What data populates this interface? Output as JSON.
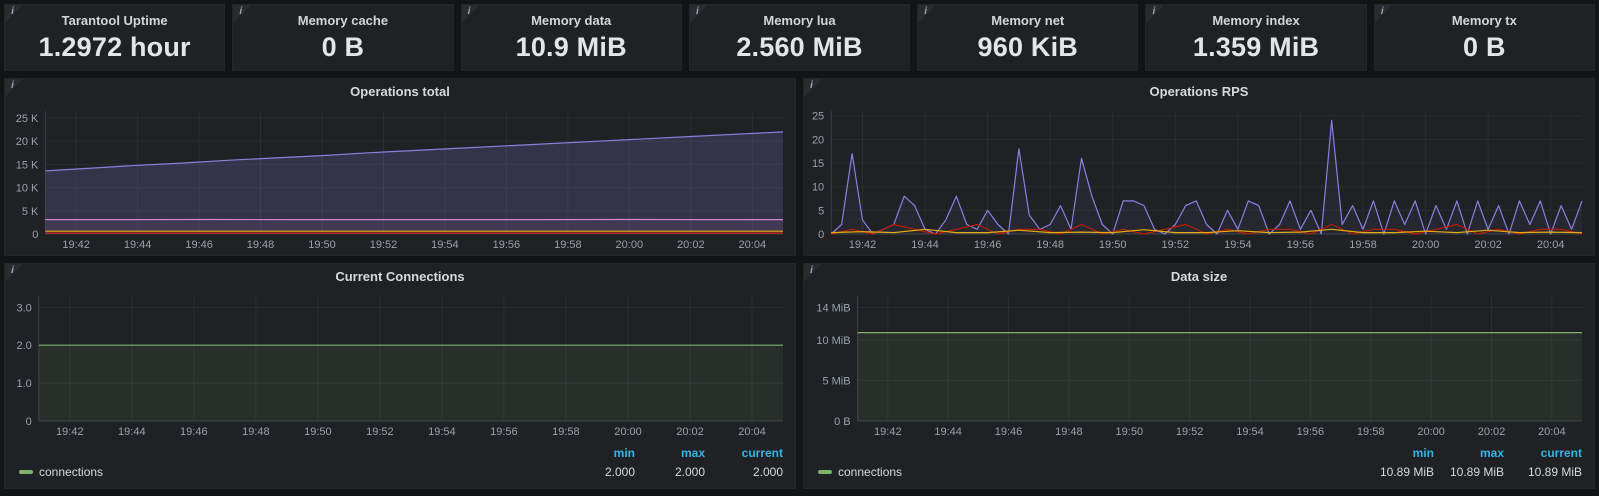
{
  "icons": {
    "info": "i"
  },
  "colors": {
    "page_bg": "#131415",
    "panel_bg": "#1f2124",
    "legend_header": "#33b5e5",
    "green": "#7eb26d",
    "purple": "#8a7fe0",
    "pink": "#d683ce",
    "orange": "#e5ac0e",
    "red": "#bf1b00"
  },
  "stats": [
    {
      "title": "Tarantool Uptime",
      "value": "1.2972 hour"
    },
    {
      "title": "Memory cache",
      "value": "0 B"
    },
    {
      "title": "Memory data",
      "value": "10.9 MiB"
    },
    {
      "title": "Memory lua",
      "value": "2.560 MiB"
    },
    {
      "title": "Memory net",
      "value": "960 KiB"
    },
    {
      "title": "Memory index",
      "value": "1.359 MiB"
    },
    {
      "title": "Memory tx",
      "value": "0 B"
    }
  ],
  "chart_data": [
    {
      "type": "area",
      "title": "Operations total",
      "x_range": [
        "19:41",
        "20:05"
      ],
      "x_ticks": [
        "19:42",
        "19:44",
        "19:46",
        "19:48",
        "19:50",
        "19:52",
        "19:54",
        "19:56",
        "19:58",
        "20:00",
        "20:02",
        "20:04"
      ],
      "ylim": [
        0,
        26500
      ],
      "y_ticks": [
        {
          "v": 0,
          "label": "0"
        },
        {
          "v": 5000,
          "label": "5 K"
        },
        {
          "v": 10000,
          "label": "10 K"
        },
        {
          "v": 15000,
          "label": "15 K"
        },
        {
          "v": 20000,
          "label": "20 K"
        },
        {
          "v": 25000,
          "label": "25 K"
        }
      ],
      "series": [
        {
          "color": "#8a7fe0",
          "fill": 0.2,
          "values": [
            13600,
            14200,
            14800,
            15300,
            15900,
            16400,
            16900,
            17500,
            18000,
            18500,
            19000,
            19500,
            20000,
            20500,
            21000,
            21500,
            22000
          ]
        },
        {
          "color": "#d683ce",
          "fill": 0.08,
          "values": [
            3100,
            3100,
            3120,
            3100,
            3110,
            3100,
            3100,
            3120,
            3100,
            3100
          ]
        },
        {
          "color": "#e5ac0e",
          "fill": 0,
          "values": [
            600,
            600
          ]
        },
        {
          "color": "#bf1b00",
          "fill": 0,
          "values": [
            200,
            200
          ]
        }
      ]
    },
    {
      "type": "line",
      "title": "Operations RPS",
      "x_range": [
        "19:41",
        "20:05"
      ],
      "x_ticks": [
        "19:42",
        "19:44",
        "19:46",
        "19:48",
        "19:50",
        "19:52",
        "19:54",
        "19:56",
        "19:58",
        "20:00",
        "20:02",
        "20:04"
      ],
      "ylim": [
        0,
        26
      ],
      "y_ticks": [
        {
          "v": 0,
          "label": "0"
        },
        {
          "v": 5,
          "label": "5"
        },
        {
          "v": 10,
          "label": "10"
        },
        {
          "v": 15,
          "label": "15"
        },
        {
          "v": 20,
          "label": "20"
        },
        {
          "v": 25,
          "label": "25"
        }
      ],
      "series": [
        {
          "color": "#8a7fe0",
          "fill": 0.07,
          "values": [
            0,
            2,
            17,
            3,
            0,
            1,
            2,
            8,
            6,
            1,
            0,
            3,
            8,
            2,
            1,
            5,
            2,
            0,
            18,
            4,
            1,
            2,
            6,
            1,
            16,
            8,
            2,
            0,
            7,
            7,
            6,
            1,
            0,
            2,
            6,
            7,
            2,
            0,
            5,
            1,
            7,
            6,
            0,
            2,
            7,
            1,
            5,
            0,
            24,
            2,
            6,
            1,
            7,
            0,
            7,
            2,
            7,
            0,
            6,
            1,
            7,
            0,
            7,
            1,
            6,
            0,
            7,
            2,
            7,
            0,
            6,
            1,
            7
          ]
        },
        {
          "color": "#bf1b00",
          "fill": 0,
          "values": [
            0,
            1,
            0,
            2,
            1,
            0,
            1,
            2,
            0,
            1,
            1,
            0,
            2,
            0,
            1,
            0,
            1,
            2,
            0,
            1,
            0,
            1,
            1,
            0,
            2,
            0,
            1,
            1,
            0,
            1,
            2,
            0,
            1,
            0,
            1,
            1,
            0
          ]
        },
        {
          "color": "#e5ac0e",
          "fill": 0,
          "values": [
            0.3,
            0.5,
            0.3,
            1,
            0.3,
            0.3,
            0.8,
            0.3,
            0.4,
            0.3,
            0.9,
            0.3,
            0.3,
            0.7,
            0.3,
            0.4,
            1,
            0.3,
            0.3,
            0.6,
            0.3,
            0.8,
            0.3,
            0.4,
            0.3
          ]
        }
      ]
    },
    {
      "type": "line",
      "title": "Current Connections",
      "x_range": [
        "19:41",
        "20:05"
      ],
      "x_ticks": [
        "19:42",
        "19:44",
        "19:46",
        "19:48",
        "19:50",
        "19:52",
        "19:54",
        "19:56",
        "19:58",
        "20:00",
        "20:02",
        "20:04"
      ],
      "ylim": [
        0,
        3.3
      ],
      "y_ticks": [
        {
          "v": 0,
          "label": "0"
        },
        {
          "v": 1,
          "label": "1.0"
        },
        {
          "v": 2,
          "label": "2.0"
        },
        {
          "v": 3,
          "label": "3.0"
        }
      ],
      "series": [
        {
          "color": "#7eb26d",
          "fill": 0.1,
          "values": [
            2,
            2
          ]
        }
      ],
      "legend": {
        "headers": [
          "min",
          "max",
          "current"
        ],
        "series": "connections",
        "color": "#7eb26d",
        "min": "2.000",
        "max": "2.000",
        "current": "2.000"
      }
    },
    {
      "type": "line",
      "title": "Data size",
      "x_range": [
        "19:41",
        "20:05"
      ],
      "x_ticks": [
        "19:42",
        "19:44",
        "19:46",
        "19:48",
        "19:50",
        "19:52",
        "19:54",
        "19:56",
        "19:58",
        "20:00",
        "20:02",
        "20:04"
      ],
      "ylim": [
        0,
        15.4
      ],
      "y_ticks": [
        {
          "v": 0,
          "label": "0 B"
        },
        {
          "v": 5,
          "label": "5 MiB"
        },
        {
          "v": 10,
          "label": "10 MiB"
        },
        {
          "v": 14,
          "label": "14 MiB"
        }
      ],
      "series": [
        {
          "color": "#7eb26d",
          "fill": 0.1,
          "values": [
            10.89,
            10.89
          ]
        }
      ],
      "legend": {
        "headers": [
          "min",
          "max",
          "current"
        ],
        "series": "connections",
        "color": "#7eb26d",
        "min": "10.89 MiB",
        "max": "10.89 MiB",
        "current": "10.89 MiB"
      }
    }
  ]
}
